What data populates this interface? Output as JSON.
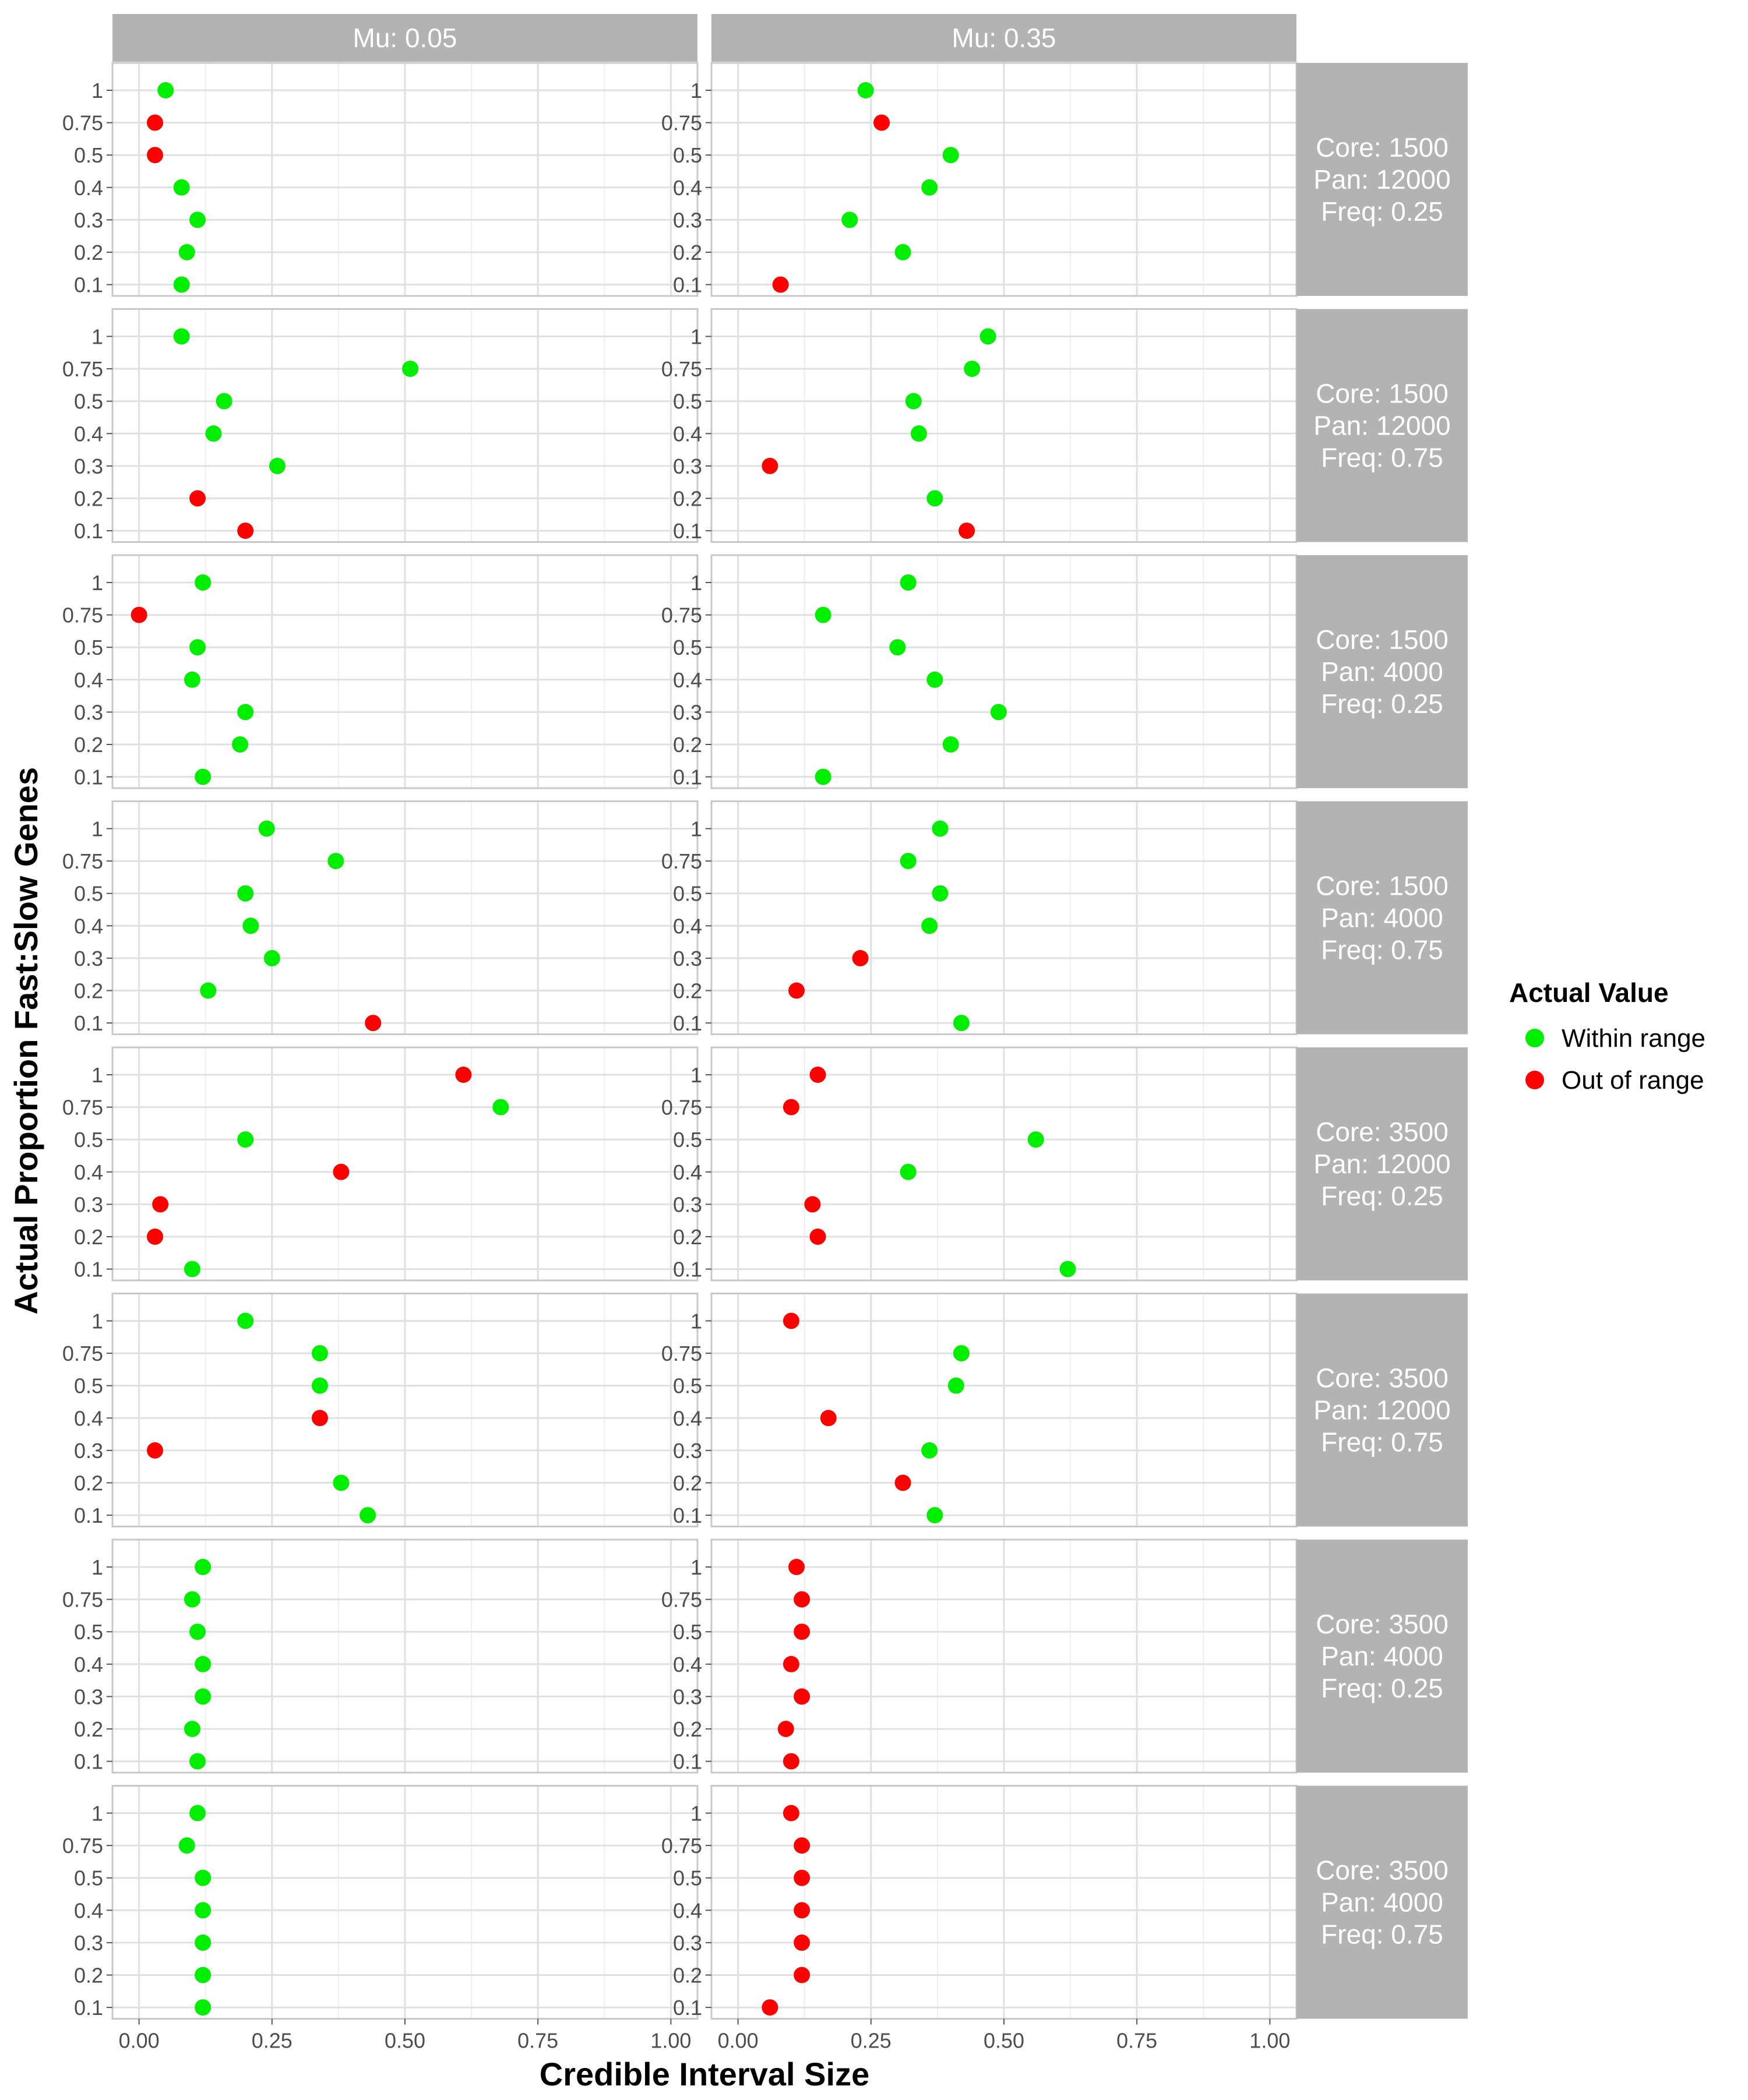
{
  "chart_data": {
    "type": "scatter",
    "xlabel": "Credible Interval Size",
    "ylabel": "Actual Proportion Fast:Slow Genes",
    "xlim": [
      -0.05,
      1.05
    ],
    "x_ticks": [
      "0.00",
      "0.25",
      "0.50",
      "0.75",
      "1.00"
    ],
    "x_tick_values": [
      0,
      0.25,
      0.5,
      0.75,
      1.0
    ],
    "y_categories": [
      "0.1",
      "0.2",
      "0.3",
      "0.4",
      "0.5",
      "0.75",
      "1"
    ],
    "grid": true,
    "legend": {
      "title": "Actual Value",
      "position": "right",
      "items": [
        {
          "label": "Within range",
          "color": "#00ee00"
        },
        {
          "label": "Out of range",
          "color": "#ff0000"
        }
      ]
    },
    "col_strips": [
      "Mu: 0.05",
      "Mu: 0.35"
    ],
    "row_strips": [
      [
        "Core: 1500",
        "Pan: 12000",
        "Freq: 0.25"
      ],
      [
        "Core: 1500",
        "Pan: 12000",
        "Freq: 0.75"
      ],
      [
        "Core: 1500",
        "Pan: 4000",
        "Freq: 0.25"
      ],
      [
        "Core: 1500",
        "Pan: 4000",
        "Freq: 0.75"
      ],
      [
        "Core: 3500",
        "Pan: 12000",
        "Freq: 0.25"
      ],
      [
        "Core: 3500",
        "Pan: 12000",
        "Freq: 0.75"
      ],
      [
        "Core: 3500",
        "Pan: 4000",
        "Freq: 0.25"
      ],
      [
        "Core: 3500",
        "Pan: 4000",
        "Freq: 0.75"
      ]
    ],
    "colors": {
      "within": "#00ee00",
      "out": "#ff0000",
      "strip": "#b3b3b3",
      "grid": "#e0e0e0",
      "border": "#c8c8c8"
    },
    "panels": [
      [
        [
          {
            "y": "1",
            "x": 0.05,
            "s": "within"
          },
          {
            "y": "0.75",
            "x": 0.03,
            "s": "out"
          },
          {
            "y": "0.5",
            "x": 0.03,
            "s": "out"
          },
          {
            "y": "0.4",
            "x": 0.08,
            "s": "within"
          },
          {
            "y": "0.3",
            "x": 0.11,
            "s": "within"
          },
          {
            "y": "0.2",
            "x": 0.09,
            "s": "within"
          },
          {
            "y": "0.1",
            "x": 0.08,
            "s": "within"
          }
        ],
        [
          {
            "y": "1",
            "x": 0.24,
            "s": "within"
          },
          {
            "y": "0.75",
            "x": 0.27,
            "s": "out"
          },
          {
            "y": "0.5",
            "x": 0.4,
            "s": "within"
          },
          {
            "y": "0.4",
            "x": 0.36,
            "s": "within"
          },
          {
            "y": "0.3",
            "x": 0.21,
            "s": "within"
          },
          {
            "y": "0.2",
            "x": 0.31,
            "s": "within"
          },
          {
            "y": "0.1",
            "x": 0.08,
            "s": "out"
          }
        ]
      ],
      [
        [
          {
            "y": "1",
            "x": 0.08,
            "s": "within"
          },
          {
            "y": "0.75",
            "x": 0.51,
            "s": "within"
          },
          {
            "y": "0.5",
            "x": 0.16,
            "s": "within"
          },
          {
            "y": "0.4",
            "x": 0.14,
            "s": "within"
          },
          {
            "y": "0.3",
            "x": 0.26,
            "s": "within"
          },
          {
            "y": "0.2",
            "x": 0.11,
            "s": "out"
          },
          {
            "y": "0.1",
            "x": 0.2,
            "s": "out"
          }
        ],
        [
          {
            "y": "1",
            "x": 0.47,
            "s": "within"
          },
          {
            "y": "0.75",
            "x": 0.44,
            "s": "within"
          },
          {
            "y": "0.5",
            "x": 0.33,
            "s": "within"
          },
          {
            "y": "0.4",
            "x": 0.34,
            "s": "within"
          },
          {
            "y": "0.3",
            "x": 0.06,
            "s": "out"
          },
          {
            "y": "0.2",
            "x": 0.37,
            "s": "within"
          },
          {
            "y": "0.1",
            "x": 0.43,
            "s": "out"
          }
        ]
      ],
      [
        [
          {
            "y": "1",
            "x": 0.12,
            "s": "within"
          },
          {
            "y": "0.75",
            "x": 0.0,
            "s": "out"
          },
          {
            "y": "0.5",
            "x": 0.11,
            "s": "within"
          },
          {
            "y": "0.4",
            "x": 0.1,
            "s": "within"
          },
          {
            "y": "0.3",
            "x": 0.2,
            "s": "within"
          },
          {
            "y": "0.2",
            "x": 0.19,
            "s": "within"
          },
          {
            "y": "0.1",
            "x": 0.12,
            "s": "within"
          }
        ],
        [
          {
            "y": "1",
            "x": 0.32,
            "s": "within"
          },
          {
            "y": "0.75",
            "x": 0.16,
            "s": "within"
          },
          {
            "y": "0.5",
            "x": 0.3,
            "s": "within"
          },
          {
            "y": "0.4",
            "x": 0.37,
            "s": "within"
          },
          {
            "y": "0.3",
            "x": 0.49,
            "s": "within"
          },
          {
            "y": "0.2",
            "x": 0.4,
            "s": "within"
          },
          {
            "y": "0.1",
            "x": 0.16,
            "s": "within"
          }
        ]
      ],
      [
        [
          {
            "y": "1",
            "x": 0.24,
            "s": "within"
          },
          {
            "y": "0.75",
            "x": 0.37,
            "s": "within"
          },
          {
            "y": "0.5",
            "x": 0.2,
            "s": "within"
          },
          {
            "y": "0.4",
            "x": 0.21,
            "s": "within"
          },
          {
            "y": "0.3",
            "x": 0.25,
            "s": "within"
          },
          {
            "y": "0.2",
            "x": 0.13,
            "s": "within"
          },
          {
            "y": "0.1",
            "x": 0.44,
            "s": "out"
          }
        ],
        [
          {
            "y": "1",
            "x": 0.38,
            "s": "within"
          },
          {
            "y": "0.75",
            "x": 0.32,
            "s": "within"
          },
          {
            "y": "0.5",
            "x": 0.38,
            "s": "within"
          },
          {
            "y": "0.4",
            "x": 0.36,
            "s": "within"
          },
          {
            "y": "0.3",
            "x": 0.23,
            "s": "out"
          },
          {
            "y": "0.2",
            "x": 0.11,
            "s": "out"
          },
          {
            "y": "0.1",
            "x": 0.42,
            "s": "within"
          }
        ]
      ],
      [
        [
          {
            "y": "1",
            "x": 0.61,
            "s": "out"
          },
          {
            "y": "0.75",
            "x": 0.68,
            "s": "within"
          },
          {
            "y": "0.5",
            "x": 0.2,
            "s": "within"
          },
          {
            "y": "0.4",
            "x": 0.38,
            "s": "out"
          },
          {
            "y": "0.3",
            "x": 0.04,
            "s": "out"
          },
          {
            "y": "0.2",
            "x": 0.03,
            "s": "out"
          },
          {
            "y": "0.1",
            "x": 0.1,
            "s": "within"
          }
        ],
        [
          {
            "y": "1",
            "x": 0.15,
            "s": "out"
          },
          {
            "y": "0.75",
            "x": 0.1,
            "s": "out"
          },
          {
            "y": "0.5",
            "x": 0.56,
            "s": "within"
          },
          {
            "y": "0.4",
            "x": 0.32,
            "s": "within"
          },
          {
            "y": "0.3",
            "x": 0.14,
            "s": "out"
          },
          {
            "y": "0.2",
            "x": 0.15,
            "s": "out"
          },
          {
            "y": "0.1",
            "x": 0.62,
            "s": "within"
          }
        ]
      ],
      [
        [
          {
            "y": "1",
            "x": 0.2,
            "s": "within"
          },
          {
            "y": "0.75",
            "x": 0.34,
            "s": "within"
          },
          {
            "y": "0.5",
            "x": 0.34,
            "s": "within"
          },
          {
            "y": "0.4",
            "x": 0.34,
            "s": "out"
          },
          {
            "y": "0.3",
            "x": 0.03,
            "s": "out"
          },
          {
            "y": "0.2",
            "x": 0.38,
            "s": "within"
          },
          {
            "y": "0.1",
            "x": 0.43,
            "s": "within"
          }
        ],
        [
          {
            "y": "1",
            "x": 0.1,
            "s": "out"
          },
          {
            "y": "0.75",
            "x": 0.42,
            "s": "within"
          },
          {
            "y": "0.5",
            "x": 0.41,
            "s": "within"
          },
          {
            "y": "0.4",
            "x": 0.17,
            "s": "out"
          },
          {
            "y": "0.3",
            "x": 0.36,
            "s": "within"
          },
          {
            "y": "0.2",
            "x": 0.31,
            "s": "out"
          },
          {
            "y": "0.1",
            "x": 0.37,
            "s": "within"
          }
        ]
      ],
      [
        [
          {
            "y": "1",
            "x": 0.12,
            "s": "within"
          },
          {
            "y": "0.75",
            "x": 0.1,
            "s": "within"
          },
          {
            "y": "0.5",
            "x": 0.11,
            "s": "within"
          },
          {
            "y": "0.4",
            "x": 0.12,
            "s": "within"
          },
          {
            "y": "0.3",
            "x": 0.12,
            "s": "within"
          },
          {
            "y": "0.2",
            "x": 0.1,
            "s": "within"
          },
          {
            "y": "0.1",
            "x": 0.11,
            "s": "within"
          }
        ],
        [
          {
            "y": "1",
            "x": 0.11,
            "s": "out"
          },
          {
            "y": "0.75",
            "x": 0.12,
            "s": "out"
          },
          {
            "y": "0.5",
            "x": 0.12,
            "s": "out"
          },
          {
            "y": "0.4",
            "x": 0.1,
            "s": "out"
          },
          {
            "y": "0.3",
            "x": 0.12,
            "s": "out"
          },
          {
            "y": "0.2",
            "x": 0.09,
            "s": "out"
          },
          {
            "y": "0.1",
            "x": 0.1,
            "s": "out"
          }
        ]
      ],
      [
        [
          {
            "y": "1",
            "x": 0.11,
            "s": "within"
          },
          {
            "y": "0.75",
            "x": 0.09,
            "s": "within"
          },
          {
            "y": "0.5",
            "x": 0.12,
            "s": "within"
          },
          {
            "y": "0.4",
            "x": 0.12,
            "s": "within"
          },
          {
            "y": "0.3",
            "x": 0.12,
            "s": "within"
          },
          {
            "y": "0.2",
            "x": 0.12,
            "s": "within"
          },
          {
            "y": "0.1",
            "x": 0.12,
            "s": "within"
          }
        ],
        [
          {
            "y": "1",
            "x": 0.1,
            "s": "out"
          },
          {
            "y": "0.75",
            "x": 0.12,
            "s": "out"
          },
          {
            "y": "0.5",
            "x": 0.12,
            "s": "out"
          },
          {
            "y": "0.4",
            "x": 0.12,
            "s": "out"
          },
          {
            "y": "0.3",
            "x": 0.12,
            "s": "out"
          },
          {
            "y": "0.2",
            "x": 0.12,
            "s": "out"
          },
          {
            "y": "0.1",
            "x": 0.06,
            "s": "out"
          }
        ]
      ]
    ]
  }
}
